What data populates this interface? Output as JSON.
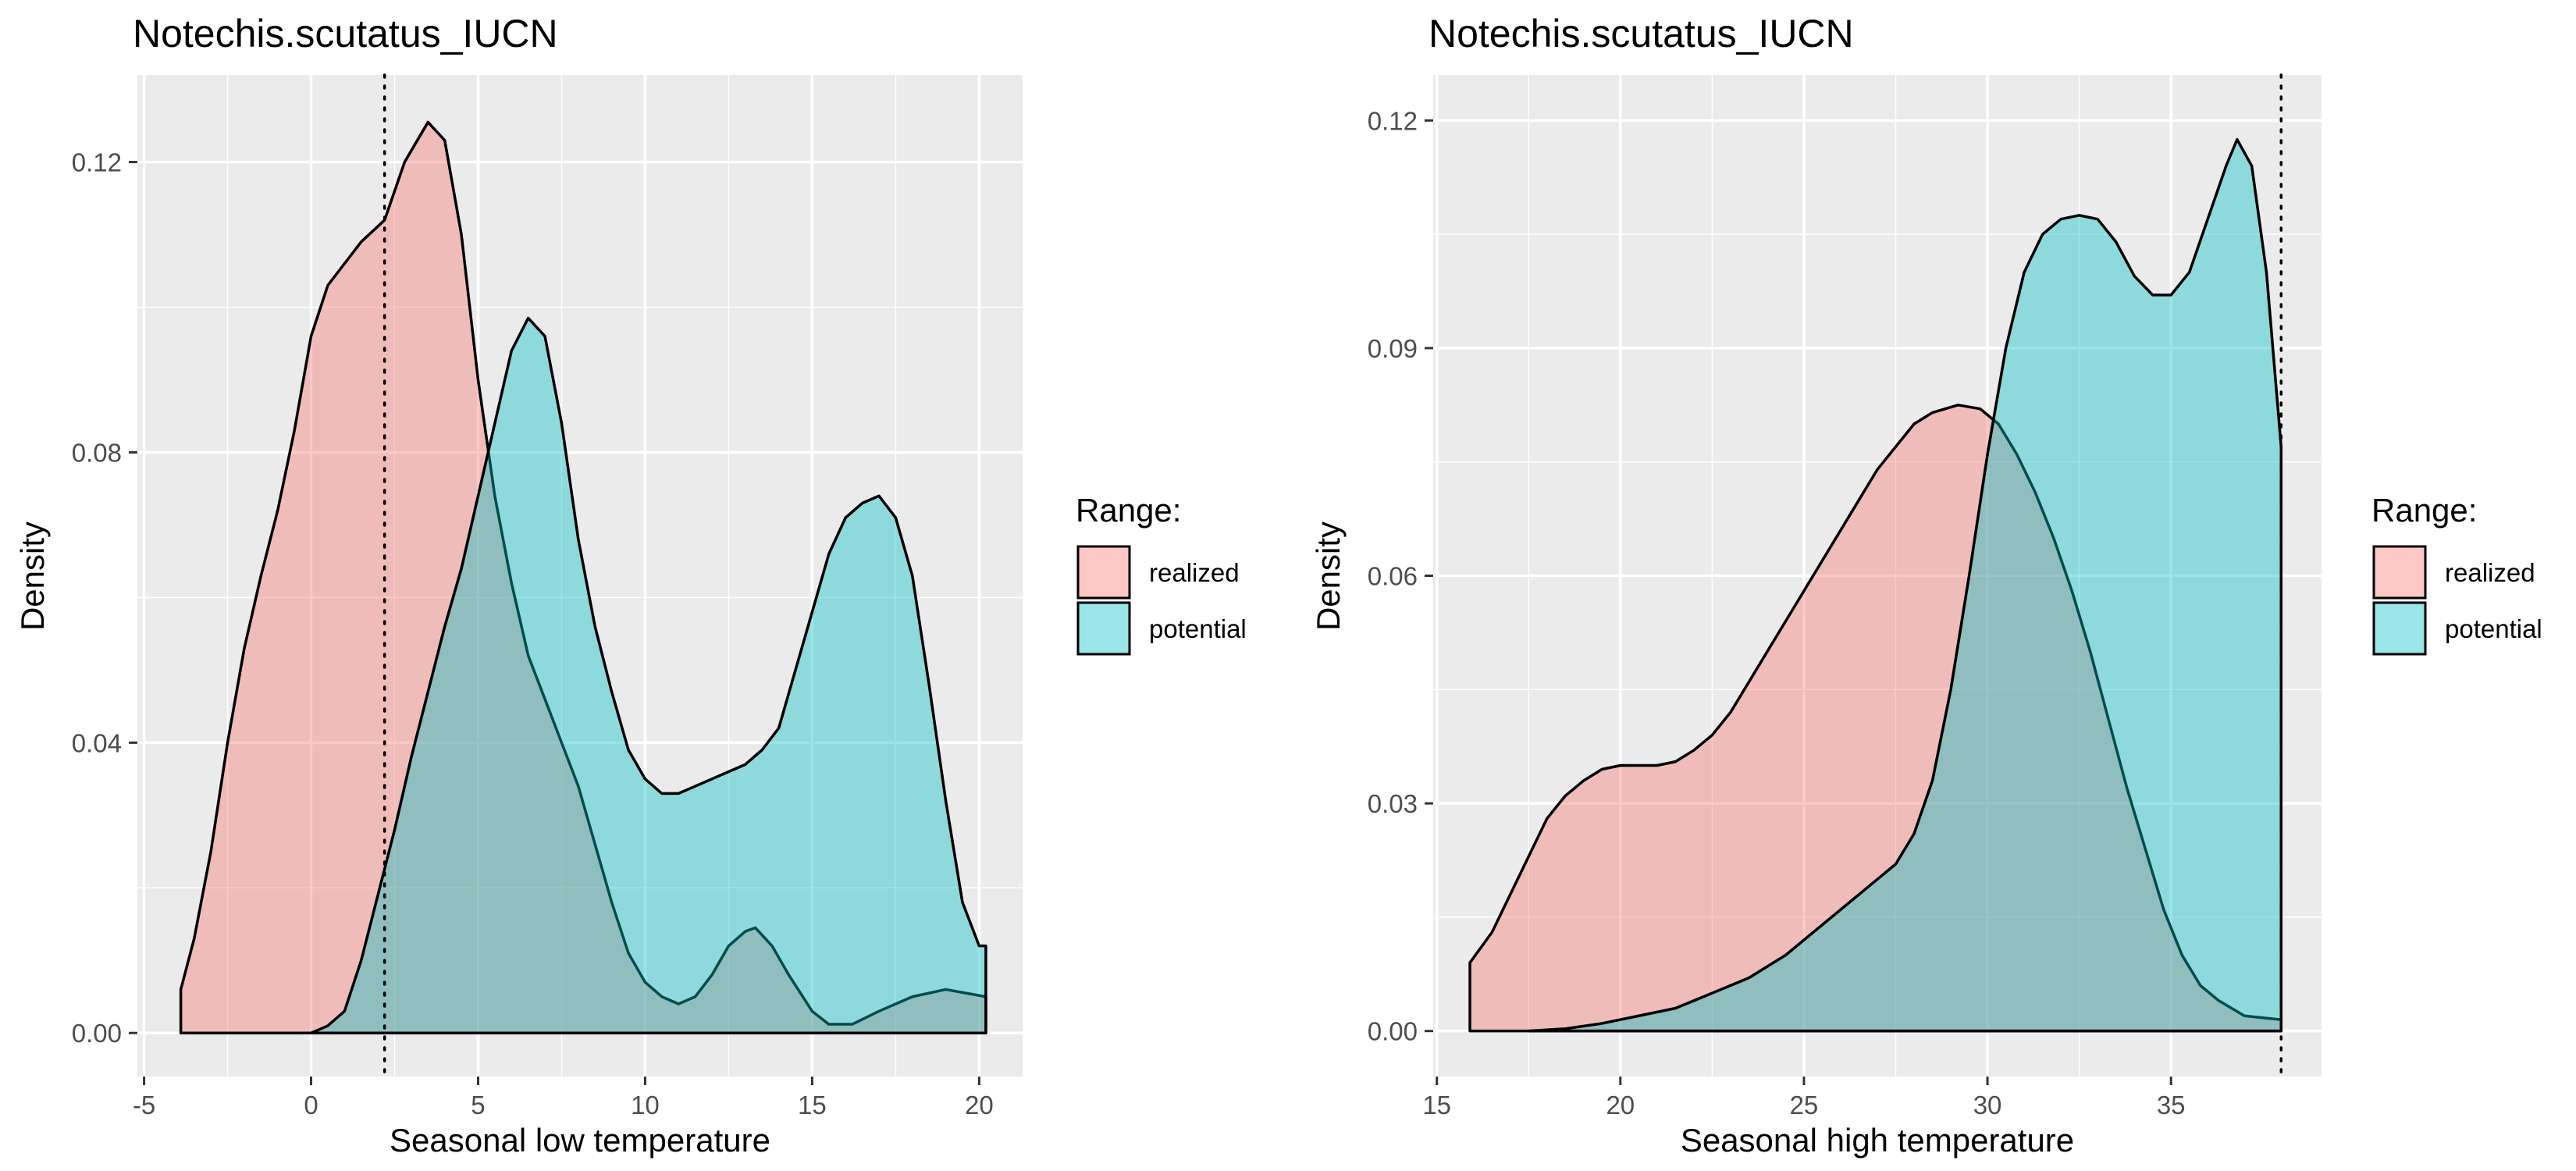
{
  "legend": {
    "title": "Range:",
    "items": [
      {
        "label": "realized",
        "color": "#F8766D"
      },
      {
        "label": "potential",
        "color": "#00BFC4"
      }
    ]
  },
  "chart_data": [
    {
      "type": "area",
      "title": "Notechis.scutatus_IUCN",
      "xlabel": "Seasonal low temperature",
      "ylabel": "Density",
      "xlim": [
        -5.2,
        21.3
      ],
      "ylim": [
        -0.006,
        0.132
      ],
      "x_ticks": [
        -5,
        0,
        5,
        10,
        15,
        20
      ],
      "x_tick_labels": [
        "-5",
        "0",
        "5",
        "10",
        "15",
        "20"
      ],
      "y_ticks": [
        0,
        0.04,
        0.08,
        0.12
      ],
      "y_tick_labels": [
        "0.00",
        "0.04",
        "0.08",
        "0.12"
      ],
      "grid": true,
      "legend_position": "right",
      "vline": 2.2,
      "series": [
        {
          "name": "realized",
          "points": [
            [
              -3.9,
              0.006
            ],
            [
              -3.5,
              0.013
            ],
            [
              -3.0,
              0.025
            ],
            [
              -2.5,
              0.04
            ],
            [
              -2.0,
              0.053
            ],
            [
              -1.5,
              0.063
            ],
            [
              -1.0,
              0.072
            ],
            [
              -0.5,
              0.083
            ],
            [
              0,
              0.096
            ],
            [
              0.5,
              0.103
            ],
            [
              1.0,
              0.106
            ],
            [
              1.5,
              0.109
            ],
            [
              2.2,
              0.112
            ],
            [
              2.8,
              0.12
            ],
            [
              3.5,
              0.1255
            ],
            [
              4.0,
              0.123
            ],
            [
              4.5,
              0.11
            ],
            [
              5.0,
              0.09
            ],
            [
              5.5,
              0.074
            ],
            [
              6.0,
              0.062
            ],
            [
              6.5,
              0.052
            ],
            [
              7.0,
              0.046
            ],
            [
              7.5,
              0.04
            ],
            [
              8.0,
              0.034
            ],
            [
              8.5,
              0.026
            ],
            [
              9.0,
              0.018
            ],
            [
              9.5,
              0.011
            ],
            [
              10.0,
              0.007
            ],
            [
              10.5,
              0.005
            ],
            [
              11.0,
              0.004
            ],
            [
              11.5,
              0.005
            ],
            [
              12.0,
              0.008
            ],
            [
              12.5,
              0.012
            ],
            [
              13.0,
              0.014
            ],
            [
              13.3,
              0.0145
            ],
            [
              13.8,
              0.012
            ],
            [
              14.3,
              0.008
            ],
            [
              15.0,
              0.003
            ],
            [
              15.5,
              0.0012
            ],
            [
              16.2,
              0.0012
            ],
            [
              17.0,
              0.003
            ],
            [
              18.0,
              0.005
            ],
            [
              19.0,
              0.006
            ],
            [
              20.2,
              0.005
            ]
          ]
        },
        {
          "name": "potential",
          "points": [
            [
              0,
              0.0
            ],
            [
              0.5,
              0.001
            ],
            [
              1.0,
              0.003
            ],
            [
              1.5,
              0.01
            ],
            [
              2.0,
              0.019
            ],
            [
              2.5,
              0.028
            ],
            [
              3.0,
              0.038
            ],
            [
              3.5,
              0.047
            ],
            [
              4.0,
              0.056
            ],
            [
              4.5,
              0.064
            ],
            [
              5.0,
              0.074
            ],
            [
              5.5,
              0.084
            ],
            [
              6.0,
              0.094
            ],
            [
              6.5,
              0.0985
            ],
            [
              7.0,
              0.096
            ],
            [
              7.5,
              0.084
            ],
            [
              8.0,
              0.068
            ],
            [
              8.5,
              0.056
            ],
            [
              9.0,
              0.047
            ],
            [
              9.5,
              0.039
            ],
            [
              10.0,
              0.035
            ],
            [
              10.5,
              0.033
            ],
            [
              11.0,
              0.033
            ],
            [
              11.5,
              0.034
            ],
            [
              12.0,
              0.035
            ],
            [
              12.5,
              0.036
            ],
            [
              13.0,
              0.037
            ],
            [
              13.5,
              0.039
            ],
            [
              14.0,
              0.042
            ],
            [
              14.5,
              0.05
            ],
            [
              15.0,
              0.058
            ],
            [
              15.5,
              0.066
            ],
            [
              16.0,
              0.071
            ],
            [
              16.5,
              0.073
            ],
            [
              17.0,
              0.074
            ],
            [
              17.5,
              0.071
            ],
            [
              18.0,
              0.063
            ],
            [
              18.5,
              0.048
            ],
            [
              19.0,
              0.032
            ],
            [
              19.5,
              0.018
            ],
            [
              20.0,
              0.012
            ],
            [
              20.2,
              0.012
            ]
          ]
        }
      ]
    },
    {
      "type": "area",
      "title": "Notechis.scutatus_IUCN",
      "xlabel": "Seasonal high temperature",
      "ylabel": "Density",
      "xlim": [
        14.9,
        39.1
      ],
      "ylim": [
        -0.006,
        0.126
      ],
      "x_ticks": [
        15,
        20,
        25,
        30,
        35
      ],
      "x_tick_labels": [
        "15",
        "20",
        "25",
        "30",
        "35"
      ],
      "y_ticks": [
        0,
        0.03,
        0.06,
        0.09,
        0.12
      ],
      "y_tick_labels": [
        "0.00",
        "0.03",
        "0.06",
        "0.09",
        "0.12"
      ],
      "grid": true,
      "legend_position": "right",
      "vline": 38.0,
      "series": [
        {
          "name": "realized",
          "points": [
            [
              15.9,
              0.009
            ],
            [
              16.5,
              0.013
            ],
            [
              17.0,
              0.018
            ],
            [
              17.5,
              0.023
            ],
            [
              18.0,
              0.028
            ],
            [
              18.5,
              0.031
            ],
            [
              19.0,
              0.033
            ],
            [
              19.5,
              0.0345
            ],
            [
              20.0,
              0.035
            ],
            [
              20.5,
              0.035
            ],
            [
              21.0,
              0.035
            ],
            [
              21.5,
              0.0355
            ],
            [
              22.0,
              0.037
            ],
            [
              22.5,
              0.039
            ],
            [
              23.0,
              0.042
            ],
            [
              23.5,
              0.046
            ],
            [
              24.0,
              0.05
            ],
            [
              24.5,
              0.054
            ],
            [
              25.0,
              0.058
            ],
            [
              25.5,
              0.062
            ],
            [
              26.0,
              0.066
            ],
            [
              26.5,
              0.07
            ],
            [
              27.0,
              0.074
            ],
            [
              27.5,
              0.077
            ],
            [
              28.0,
              0.08
            ],
            [
              28.5,
              0.0815
            ],
            [
              29.2,
              0.0825
            ],
            [
              29.8,
              0.082
            ],
            [
              30.3,
              0.08
            ],
            [
              30.8,
              0.076
            ],
            [
              31.3,
              0.071
            ],
            [
              31.8,
              0.065
            ],
            [
              32.3,
              0.058
            ],
            [
              32.8,
              0.05
            ],
            [
              33.3,
              0.041
            ],
            [
              33.8,
              0.032
            ],
            [
              34.3,
              0.024
            ],
            [
              34.8,
              0.016
            ],
            [
              35.3,
              0.01
            ],
            [
              35.8,
              0.006
            ],
            [
              36.3,
              0.004
            ],
            [
              37.0,
              0.002
            ],
            [
              38.0,
              0.0015
            ]
          ]
        },
        {
          "name": "potential",
          "points": [
            [
              17.5,
              0.0
            ],
            [
              18.5,
              0.0003
            ],
            [
              19.5,
              0.001
            ],
            [
              20.5,
              0.002
            ],
            [
              21.5,
              0.003
            ],
            [
              22.5,
              0.005
            ],
            [
              23.5,
              0.007
            ],
            [
              24.5,
              0.01
            ],
            [
              25.5,
              0.014
            ],
            [
              26.5,
              0.018
            ],
            [
              27.5,
              0.022
            ],
            [
              28.0,
              0.026
            ],
            [
              28.5,
              0.033
            ],
            [
              29.0,
              0.045
            ],
            [
              29.5,
              0.06
            ],
            [
              30.0,
              0.076
            ],
            [
              30.5,
              0.09
            ],
            [
              31.0,
              0.1
            ],
            [
              31.5,
              0.105
            ],
            [
              32.0,
              0.107
            ],
            [
              32.5,
              0.1075
            ],
            [
              33.0,
              0.107
            ],
            [
              33.5,
              0.104
            ],
            [
              34.0,
              0.0995
            ],
            [
              34.5,
              0.097
            ],
            [
              35.0,
              0.097
            ],
            [
              35.5,
              0.1
            ],
            [
              36.0,
              0.107
            ],
            [
              36.5,
              0.114
            ],
            [
              36.8,
              0.1175
            ],
            [
              37.2,
              0.114
            ],
            [
              37.6,
              0.1
            ],
            [
              38.0,
              0.077
            ]
          ]
        }
      ]
    }
  ]
}
